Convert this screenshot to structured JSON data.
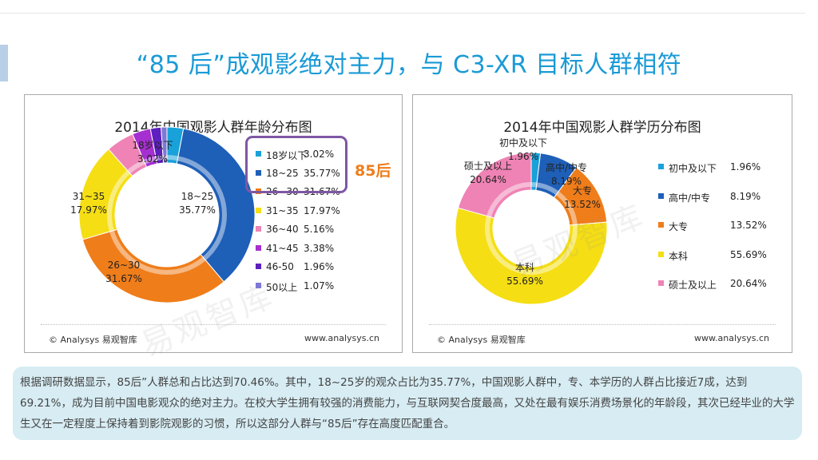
{
  "title": "“85 后”成观影绝对主力，与 C3-XR 目标人群相符",
  "left_panel": {
    "footer_left": "© Analysys 易观智库",
    "footer_right": "www.analysys.cn",
    "highlight_label": "85后"
  },
  "right_panel": {
    "footer_left": "© Analysys 易观智库",
    "footer_right": "www.analysys.cn"
  },
  "watermark_text": "易观智库",
  "summary": "根据调研数据显示，85后”人群总和占比达到70.46%。其中，18~25岁的观众占比为35.77%，中国观影人群中，专、本学历的人群占比接近7成，达到69.21%，成为目前中国电影观众的绝对主力。在校大学生拥有较强的消费能力，与互联网契合度最高，又处在最有娱乐消费场景化的年龄段，其次已经毕业的大学生又在一定程度上保持着到影院观影的习惯，所以这部分人群与“85后”存在高度匹配重合。",
  "chart_data": [
    {
      "type": "pie",
      "title": "2014年中国观影人群年龄分布图",
      "labels": [
        "18岁以下",
        "18~25",
        "26~30",
        "31~35",
        "36~40",
        "41~45",
        "46-50",
        "50以上"
      ],
      "values": [
        3.02,
        35.77,
        31.67,
        17.97,
        5.16,
        3.38,
        1.96,
        1.07
      ],
      "value_labels": [
        "3.02%",
        "35.77%",
        "31.67%",
        "17.97%",
        "5.16%",
        "3.38%",
        "1.96%",
        "1.07%"
      ],
      "colors": [
        "#19a1d9",
        "#1e5fb8",
        "#ef7d1a",
        "#f5de14",
        "#ef83b5",
        "#a52fd0",
        "#5d1fbf",
        "#7c79d6"
      ],
      "inside_labels": [
        {
          "index": 0,
          "name": "18岁以下",
          "pct": "3.02%"
        },
        {
          "index": 1,
          "name": "18~25",
          "pct": "35.77%"
        },
        {
          "index": 2,
          "name": "26~30",
          "pct": "31.67%"
        },
        {
          "index": 3,
          "name": "31~35",
          "pct": "17.97%"
        }
      ],
      "legend": "right",
      "donut": true
    },
    {
      "type": "pie",
      "title": "2014年中国观影人群学历分布图",
      "labels": [
        "初中及以下",
        "高中/中专",
        "大专",
        "本科",
        "硕士及以上"
      ],
      "values": [
        1.96,
        8.19,
        13.52,
        55.69,
        20.64
      ],
      "value_labels": [
        "1.96%",
        "8.19%",
        "13.52%",
        "55.69%",
        "20.64%"
      ],
      "colors": [
        "#19a1d9",
        "#1e5fb8",
        "#ef7d1a",
        "#f5de14",
        "#ef83b5"
      ],
      "inside_labels": [
        {
          "index": 0,
          "name": "初中及以下",
          "pct": "1.96%"
        },
        {
          "index": 1,
          "name": "高中/中专",
          "pct": "8.19%"
        },
        {
          "index": 2,
          "name": "大专",
          "pct": "13.52%"
        },
        {
          "index": 3,
          "name": "本科",
          "pct": "55.69%"
        },
        {
          "index": 4,
          "name": "硕士及以上",
          "pct": "20.64%"
        }
      ],
      "legend": "right",
      "donut": true
    }
  ]
}
